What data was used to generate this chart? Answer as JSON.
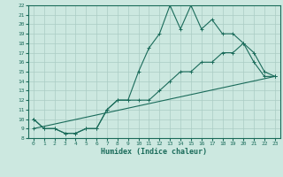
{
  "title": "",
  "xlabel": "Humidex (Indice chaleur)",
  "ylabel": "",
  "bg_color": "#cce8e0",
  "line_color": "#1a6b5a",
  "grid_color": "#aaccc4",
  "xlim": [
    -0.5,
    23.5
  ],
  "ylim": [
    8,
    22
  ],
  "xticks": [
    0,
    1,
    2,
    3,
    4,
    5,
    6,
    7,
    8,
    9,
    10,
    11,
    12,
    13,
    14,
    15,
    16,
    17,
    18,
    19,
    20,
    21,
    22,
    23
  ],
  "yticks": [
    8,
    9,
    10,
    11,
    12,
    13,
    14,
    15,
    16,
    17,
    18,
    19,
    20,
    21,
    22
  ],
  "line1_x": [
    0,
    1,
    2,
    3,
    4,
    5,
    6,
    7,
    8,
    9,
    10,
    11,
    12,
    13,
    14,
    15,
    16,
    17,
    18,
    19,
    20,
    21,
    22,
    23
  ],
  "line1_y": [
    10,
    9,
    9,
    8.5,
    8.5,
    9,
    9,
    11,
    12,
    12,
    15,
    17.5,
    19,
    22,
    19.5,
    22,
    19.5,
    20.5,
    19,
    19,
    18,
    16,
    14.5,
    14.5
  ],
  "line2_x": [
    0,
    1,
    2,
    3,
    4,
    5,
    6,
    7,
    8,
    9,
    10,
    11,
    12,
    13,
    14,
    15,
    16,
    17,
    18,
    19,
    20,
    21,
    22,
    23
  ],
  "line2_y": [
    10,
    9,
    9,
    8.5,
    8.5,
    9,
    9,
    11,
    12,
    12,
    12,
    12,
    13,
    14,
    15,
    15,
    16,
    16,
    17,
    17,
    18,
    17,
    15,
    14.5
  ],
  "line3_x": [
    0,
    23
  ],
  "line3_y": [
    9,
    14.5
  ]
}
